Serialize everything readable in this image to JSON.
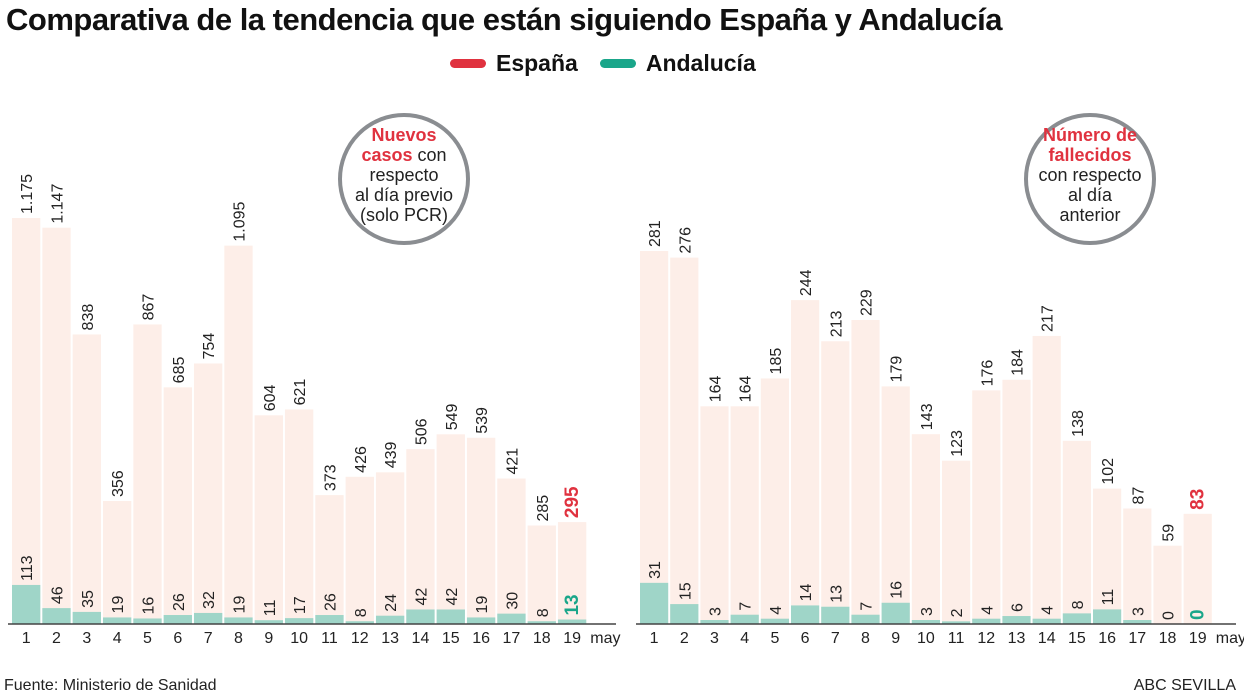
{
  "title": "Comparativa de la tendencia que están siguiendo España y Andalucía",
  "legend": [
    {
      "label": "España",
      "color": "#e0323f"
    },
    {
      "label": "Andalucía",
      "color": "#1aa68a"
    }
  ],
  "source": "Fuente: Ministerio de Sanidad",
  "credit": "ABC SEVILLA",
  "colors": {
    "espana_bar": "#fdeee8",
    "andalucia_bar": "#9fd5c8",
    "highlight_red": "#e0323f",
    "highlight_teal": "#1aa68a",
    "circle": "#8a8d91"
  },
  "chart_data": [
    {
      "type": "bar",
      "title_bold": "Nuevos casos",
      "title_rest": "con respecto al día previo (solo PCR)",
      "title_lines": [
        [
          "Nuevos",
          ""
        ],
        [
          "casos",
          " con"
        ],
        [
          "",
          "respecto"
        ],
        [
          "",
          "al día previo"
        ],
        [
          "",
          "(solo PCR)"
        ]
      ],
      "categories": [
        "1",
        "2",
        "3",
        "4",
        "5",
        "6",
        "7",
        "8",
        "9",
        "10",
        "11",
        "12",
        "13",
        "14",
        "15",
        "16",
        "17",
        "18",
        "19"
      ],
      "x_unit": "may",
      "value_labels_espana": [
        "1.175",
        "1.147",
        "838",
        "356",
        "867",
        "685",
        "754",
        "1.095",
        "604",
        "621",
        "373",
        "426",
        "439",
        "506",
        "549",
        "539",
        "421",
        "285",
        "295"
      ],
      "series": [
        {
          "name": "España",
          "values": [
            1175,
            1147,
            838,
            356,
            867,
            685,
            754,
            1095,
            604,
            621,
            373,
            426,
            439,
            506,
            549,
            539,
            421,
            285,
            295
          ]
        },
        {
          "name": "Andalucía",
          "values": [
            113,
            46,
            35,
            19,
            16,
            26,
            32,
            19,
            11,
            17,
            26,
            8,
            24,
            42,
            42,
            19,
            30,
            8,
            13
          ]
        }
      ],
      "ylim": [
        0,
        1175
      ]
    },
    {
      "type": "bar",
      "title_lines": [
        [
          "Número de",
          ""
        ],
        [
          "fallecidos",
          ""
        ],
        [
          "",
          "con respecto"
        ],
        [
          "",
          "al día"
        ],
        [
          "",
          "anterior"
        ]
      ],
      "categories": [
        "1",
        "2",
        "3",
        "4",
        "5",
        "6",
        "7",
        "8",
        "9",
        "10",
        "11",
        "12",
        "13",
        "14",
        "15",
        "16",
        "17",
        "18",
        "19"
      ],
      "x_unit": "may",
      "value_labels_espana": [
        "281",
        "276",
        "164",
        "164",
        "185",
        "244",
        "213",
        "229",
        "179",
        "143",
        "123",
        "176",
        "184",
        "217",
        "138",
        "102",
        "87",
        "59",
        "83"
      ],
      "series": [
        {
          "name": "España",
          "values": [
            281,
            276,
            164,
            164,
            185,
            244,
            213,
            229,
            179,
            143,
            123,
            176,
            184,
            217,
            138,
            102,
            87,
            59,
            83
          ]
        },
        {
          "name": "Andalucía",
          "values": [
            31,
            15,
            3,
            7,
            4,
            14,
            13,
            7,
            16,
            3,
            2,
            4,
            6,
            4,
            8,
            11,
            3,
            0,
            0
          ]
        }
      ],
      "ylim": [
        0,
        281
      ]
    }
  ]
}
